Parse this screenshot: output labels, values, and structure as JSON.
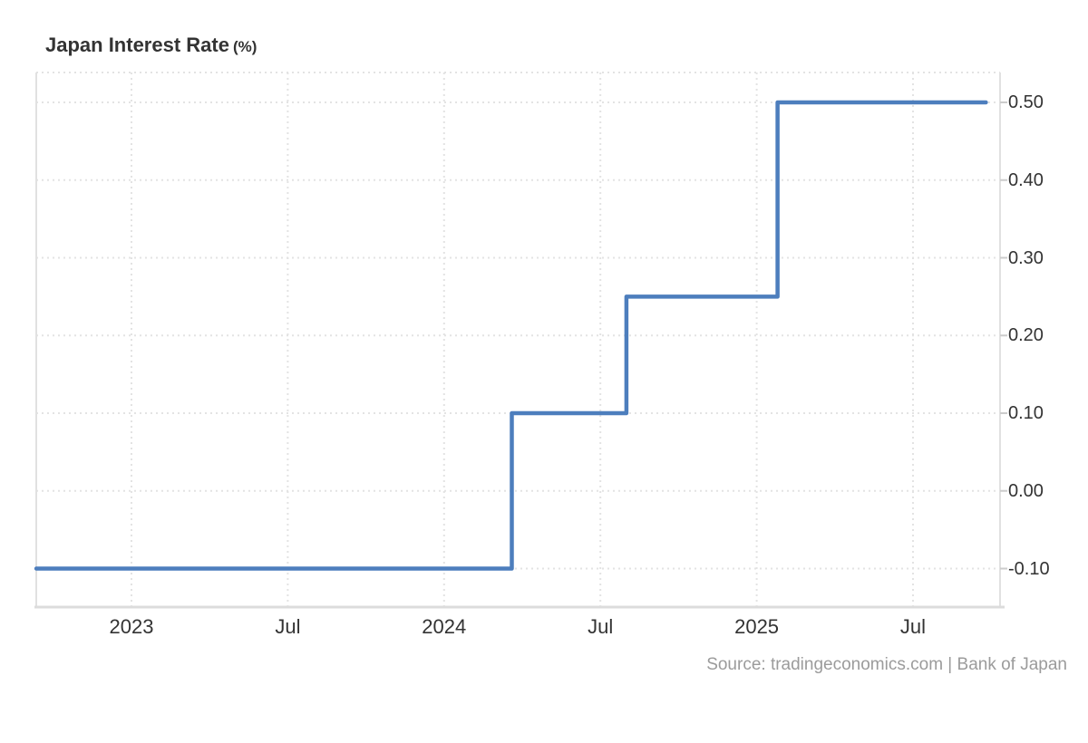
{
  "header": {
    "title": "Japan Interest Rate",
    "unit": "(%)"
  },
  "footer": {
    "source": "Source: tradingeconomics.com | Bank of Japan"
  },
  "colors": {
    "line": "#4d7ebd",
    "grid_dotted": "#e3e3e3",
    "axis_solid": "#e1e1e1",
    "axis_bottom": "#dcdcdc",
    "tick": "#cccccc",
    "title_text": "#333333",
    "axis_label_text": "#333333",
    "source_text": "#9b9b9b",
    "background": "#ffffff"
  },
  "chart_data": {
    "type": "line",
    "step": true,
    "title": "Japan Interest Rate (%)",
    "xlabel": "",
    "ylabel": "Interest Rate (%)",
    "grid": "dotted",
    "legend": false,
    "y_axis_side": "right",
    "ylim": [
      -0.15,
      0.54
    ],
    "y_ticks": [
      {
        "label": "0.50",
        "value": 0.5
      },
      {
        "label": "0.40",
        "value": 0.4
      },
      {
        "label": "0.30",
        "value": 0.3
      },
      {
        "label": "0.20",
        "value": 0.2
      },
      {
        "label": "0.10",
        "value": 0.1
      },
      {
        "label": "0.00",
        "value": 0.0
      },
      {
        "label": "-0.10",
        "value": -0.1
      }
    ],
    "x_unit": "months_since_2022_01",
    "xlim": [
      8.35,
      45.34
    ],
    "x_ticks": [
      {
        "label": "2023",
        "m": 12
      },
      {
        "label": "Jul",
        "m": 18
      },
      {
        "label": "2024",
        "m": 24
      },
      {
        "label": "Jul",
        "m": 30
      },
      {
        "label": "2025",
        "m": 36
      },
      {
        "label": "Jul",
        "m": 42
      }
    ],
    "series": [
      {
        "name": "Japan Interest Rate",
        "color": "#4d7ebd",
        "points": [
          {
            "date": "2022-09",
            "m": 8.35,
            "value": -0.1
          },
          {
            "date": "2024-03",
            "m": 26.6,
            "value": 0.1
          },
          {
            "date": "2024-08",
            "m": 31.0,
            "value": 0.25
          },
          {
            "date": "2025-01",
            "m": 36.8,
            "value": 0.5
          }
        ],
        "end_m": 44.8,
        "end_value": 0.5
      }
    ],
    "source": "Source: tradingeconomics.com | Bank of Japan"
  }
}
